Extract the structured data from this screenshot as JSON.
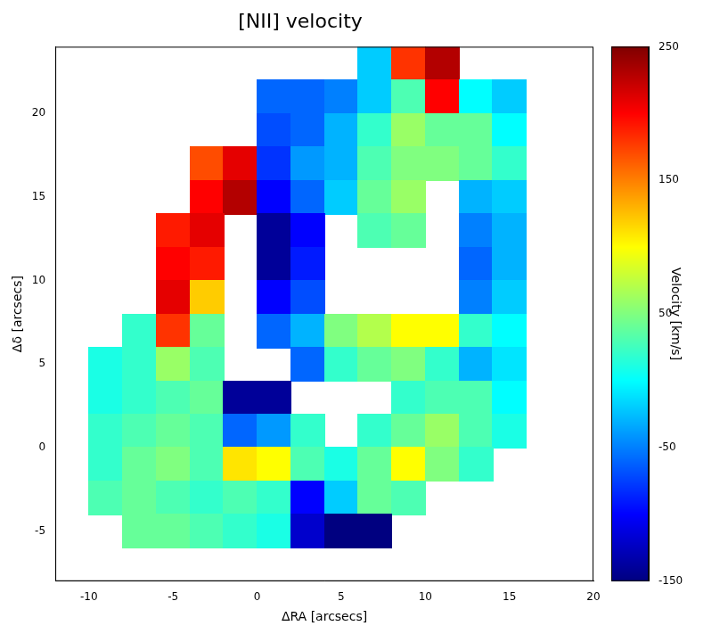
{
  "chart_data": {
    "type": "heatmap",
    "title": "[NII] velocity",
    "x_label": "ΔRA [arcsecs]",
    "y_label": "Δδ [arcsecs]",
    "x": [
      -11,
      -9,
      -7,
      -5,
      -3,
      -1,
      1,
      3,
      5,
      7,
      9,
      11,
      13,
      15,
      17,
      19
    ],
    "y": [
      23,
      21,
      19,
      17,
      15,
      13,
      11,
      9,
      7,
      5,
      3,
      1,
      -1,
      -3,
      -5,
      -7
    ],
    "values": [
      [
        null,
        null,
        null,
        null,
        null,
        null,
        null,
        null,
        null,
        -20,
        180,
        230,
        null,
        null,
        null,
        null
      ],
      [
        null,
        null,
        null,
        null,
        null,
        null,
        -60,
        -60,
        -50,
        -20,
        30,
        200,
        0,
        -20,
        null,
        null
      ],
      [
        null,
        null,
        null,
        null,
        null,
        null,
        -70,
        -60,
        -30,
        20,
        60,
        40,
        40,
        0,
        null,
        null
      ],
      [
        null,
        null,
        null,
        null,
        170,
        210,
        -80,
        -40,
        -30,
        30,
        50,
        50,
        40,
        20,
        null,
        null
      ],
      [
        null,
        null,
        null,
        null,
        200,
        230,
        -100,
        -60,
        -20,
        40,
        60,
        null,
        -30,
        -20,
        null,
        null
      ],
      [
        null,
        null,
        null,
        190,
        210,
        null,
        -140,
        -100,
        null,
        30,
        40,
        null,
        -50,
        -30,
        null,
        null
      ],
      [
        null,
        null,
        null,
        200,
        190,
        null,
        -140,
        -90,
        null,
        null,
        null,
        null,
        -60,
        -30,
        null,
        null
      ],
      [
        null,
        null,
        null,
        210,
        120,
        null,
        -100,
        -70,
        null,
        null,
        null,
        null,
        -50,
        -20,
        null,
        null
      ],
      [
        null,
        null,
        20,
        180,
        40,
        null,
        -60,
        -30,
        50,
        70,
        100,
        100,
        20,
        0,
        null,
        null
      ],
      [
        null,
        10,
        20,
        60,
        30,
        null,
        null,
        -60,
        20,
        40,
        50,
        20,
        -30,
        -10,
        null,
        null
      ],
      [
        null,
        10,
        20,
        30,
        40,
        -140,
        -140,
        null,
        null,
        null,
        20,
        30,
        30,
        0,
        null,
        null
      ],
      [
        null,
        20,
        30,
        40,
        30,
        -60,
        -40,
        20,
        null,
        20,
        40,
        60,
        30,
        10,
        null,
        null
      ],
      [
        null,
        20,
        40,
        50,
        30,
        110,
        100,
        30,
        10,
        40,
        100,
        50,
        20,
        null,
        null,
        null
      ],
      [
        null,
        30,
        40,
        30,
        20,
        30,
        20,
        -100,
        -20,
        40,
        30,
        null,
        null,
        null,
        null,
        null
      ],
      [
        null,
        null,
        40,
        40,
        30,
        20,
        10,
        -120,
        -150,
        -150,
        null,
        null,
        null,
        null,
        null,
        null
      ],
      [
        null,
        null,
        null,
        null,
        null,
        null,
        null,
        null,
        null,
        null,
        null,
        null,
        null,
        null,
        null,
        null
      ]
    ],
    "xlim": [
      -12,
      20
    ],
    "ylim": [
      -8,
      24
    ],
    "xticks": [
      -10,
      -5,
      0,
      5,
      10,
      15,
      20
    ],
    "yticks": [
      -5,
      0,
      5,
      10,
      15,
      20
    ],
    "grid": false,
    "colorbar": {
      "label": "Velocity [km/s]",
      "range": [
        -150,
        250
      ],
      "ticks": [
        -150,
        -50,
        50,
        150,
        250
      ]
    }
  }
}
